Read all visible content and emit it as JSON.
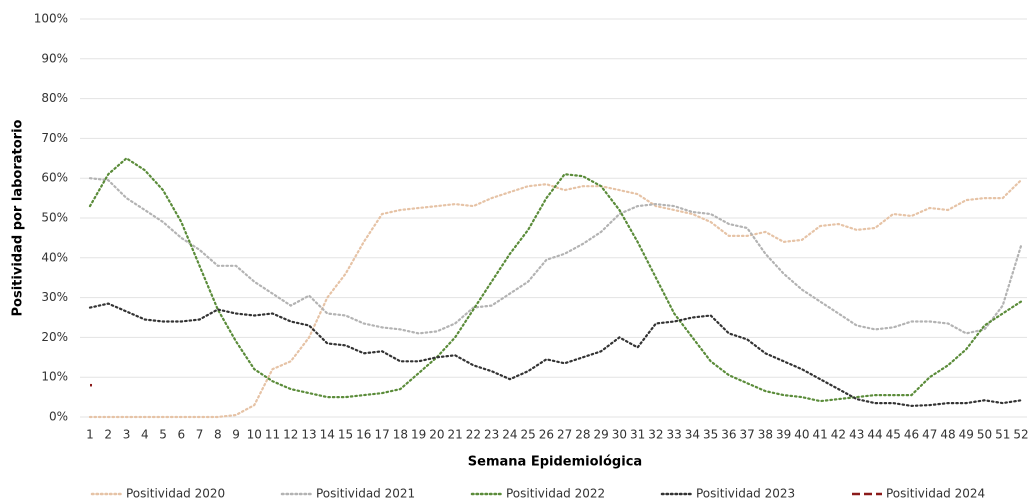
{
  "chart_data": {
    "type": "line",
    "y_label": "Positividad por laboratorio",
    "x_label": "Semana Epidemiológica",
    "categories": [
      1,
      2,
      3,
      4,
      5,
      6,
      7,
      8,
      9,
      10,
      11,
      12,
      13,
      14,
      15,
      16,
      17,
      18,
      19,
      20,
      21,
      22,
      23,
      24,
      25,
      26,
      27,
      28,
      29,
      30,
      31,
      32,
      33,
      34,
      35,
      36,
      37,
      38,
      39,
      40,
      41,
      42,
      43,
      44,
      45,
      46,
      47,
      48,
      49,
      50,
      51,
      52
    ],
    "ylim": [
      0,
      100
    ],
    "yticks": [
      {
        "value": 0,
        "label": "0%"
      },
      {
        "value": 10,
        "label": "10%"
      },
      {
        "value": 20,
        "label": "20%"
      },
      {
        "value": 30,
        "label": "30%"
      },
      {
        "value": 40,
        "label": "40%"
      },
      {
        "value": 50,
        "label": "50%"
      },
      {
        "value": 60,
        "label": "60%"
      },
      {
        "value": 70,
        "label": "70%"
      },
      {
        "value": 80,
        "label": "80%"
      },
      {
        "value": 90,
        "label": "90%"
      },
      {
        "value": 100,
        "label": "100%"
      }
    ],
    "grid": true,
    "legend": "bottom",
    "series": [
      {
        "name": "Positividad 2020",
        "color": "#e6c3a6",
        "dash": "dotted",
        "values": [
          0,
          0,
          0,
          0,
          0,
          0,
          0,
          0,
          0.5,
          3,
          12,
          14,
          20,
          30,
          36,
          44,
          51,
          52,
          52.5,
          53,
          53.5,
          53,
          55,
          56.5,
          58,
          58.5,
          57,
          58,
          58,
          57,
          56,
          53,
          52,
          51,
          49,
          45.5,
          45.5,
          46.5,
          44,
          44.5,
          48,
          48.5,
          47,
          47.5,
          51,
          50.5,
          52.5,
          52,
          54.5,
          55,
          55,
          59.5
        ]
      },
      {
        "name": "Positividad 2021",
        "color": "#b3b3b3",
        "dash": "dotted",
        "values": [
          60,
          59.5,
          55,
          52,
          49,
          45,
          42,
          38,
          38,
          34,
          31,
          28,
          30.5,
          26,
          25.5,
          23.5,
          22.5,
          22,
          21,
          21.5,
          23.5,
          27.5,
          28,
          31,
          34,
          39.5,
          41,
          43.5,
          46.5,
          51,
          53,
          53.5,
          53,
          51.5,
          51,
          48.5,
          47.5,
          41,
          36,
          32,
          29,
          26,
          23,
          22,
          22.5,
          24,
          24,
          23.5,
          21,
          22,
          28,
          43
        ]
      },
      {
        "name": "Positividad 2022",
        "color": "#5b8c3a",
        "dash": "dotted",
        "values": [
          53,
          61,
          65,
          62,
          57,
          49,
          38,
          27,
          19,
          12,
          9,
          7,
          6,
          5,
          5,
          5.5,
          6,
          7,
          11,
          15,
          20,
          27,
          34,
          41,
          47,
          55,
          61,
          60.5,
          58,
          52,
          44,
          35,
          26,
          20,
          14,
          10.5,
          8.5,
          6.5,
          5.5,
          5,
          4,
          4.5,
          5,
          5.5,
          5.5,
          5.5,
          10,
          13,
          17,
          23,
          26,
          29
        ]
      },
      {
        "name": "Positividad 2023",
        "color": "#333333",
        "dash": "dotted",
        "values": [
          27.5,
          28.5,
          26.5,
          24.5,
          24,
          24,
          24.5,
          27,
          26,
          25.5,
          26,
          24,
          23,
          18.5,
          18,
          16,
          16.5,
          14,
          14,
          15,
          15.5,
          13,
          11.5,
          9.5,
          11.5,
          14.5,
          13.5,
          15,
          16.5,
          20,
          17.5,
          23.5,
          24,
          25,
          25.5,
          21,
          19.5,
          16,
          14,
          12,
          9.5,
          7,
          4.5,
          3.5,
          3.5,
          2.8,
          3,
          3.5,
          3.5,
          4.2,
          3.5,
          4.2
        ]
      },
      {
        "name": "Positividad 2024",
        "color": "#8b1a1a",
        "dash": "dashed",
        "values": [
          8,
          null,
          null,
          null,
          null,
          null,
          null,
          null,
          null,
          null,
          null,
          null,
          null,
          null,
          null,
          null,
          null,
          null,
          null,
          null,
          null,
          null,
          null,
          null,
          null,
          null,
          null,
          null,
          null,
          null,
          null,
          null,
          null,
          null,
          null,
          null,
          null,
          null,
          null,
          null,
          null,
          null,
          null,
          null,
          null,
          null,
          null,
          null,
          null,
          null,
          null,
          null
        ]
      }
    ]
  }
}
